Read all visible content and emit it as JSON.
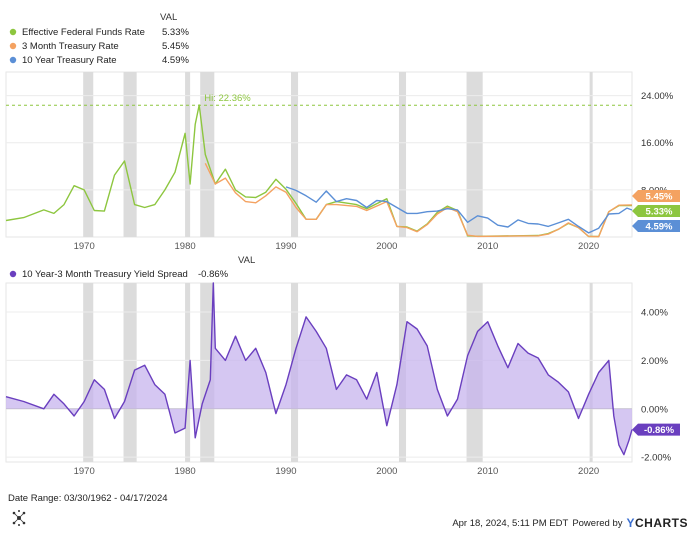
{
  "legend_top": {
    "header": "VAL",
    "items": [
      {
        "label": "Effective Federal Funds Rate",
        "value": "5.33%",
        "color": "#8dc63f"
      },
      {
        "label": "3 Month Treasury Rate",
        "value": "5.45%",
        "color": "#f4a261"
      },
      {
        "label": "10 Year Treasury Rate",
        "value": "4.59%",
        "color": "#5b8fd6"
      }
    ]
  },
  "legend_bottom": {
    "header": "VAL",
    "items": [
      {
        "label": "10 Year-3 Month Treasury Yield Spread",
        "value": "-0.86%",
        "color": "#6a3fbf"
      }
    ]
  },
  "footer": {
    "date_range": "Date Range: 03/30/1962 - 04/17/2024",
    "timestamp": "Apr 18, 2024, 5:11 PM EDT",
    "powered_by": "Powered by",
    "brand_y": "Y",
    "brand_rest": "CHARTS"
  },
  "chart_data": [
    {
      "type": "line",
      "x_ticks": [
        "1970",
        "1980",
        "1990",
        "2000",
        "2010",
        "2020"
      ],
      "y_ticks": [
        "8.00%",
        "16.00%",
        "24.00%"
      ],
      "ylim": [
        0,
        28
      ],
      "xlim": [
        1962.25,
        2024.3
      ],
      "grid": true,
      "legend_position": "top-left",
      "annotation": {
        "text": "Hi: 22.36%",
        "value": 22.36,
        "color": "#8dc63f"
      },
      "end_labels": [
        {
          "text": "5.45%",
          "color": "#f4a261"
        },
        {
          "text": "5.33%",
          "color": "#8dc63f"
        },
        {
          "text": "4.59%",
          "color": "#5b8fd6"
        }
      ],
      "recessions": [
        [
          1969.9,
          1970.9
        ],
        [
          1973.9,
          1975.2
        ],
        [
          1980.0,
          1980.5
        ],
        [
          1981.5,
          1982.9
        ],
        [
          1990.5,
          1991.2
        ],
        [
          2001.2,
          2001.9
        ],
        [
          2007.9,
          2009.5
        ],
        [
          2020.1,
          2020.4
        ]
      ],
      "series": [
        {
          "name": "Effective Federal Funds Rate",
          "color": "#8dc63f",
          "points": [
            [
              1962.25,
              2.8
            ],
            [
              1964,
              3.3
            ],
            [
              1966,
              4.6
            ],
            [
              1967,
              4.0
            ],
            [
              1968,
              5.5
            ],
            [
              1969,
              8.7
            ],
            [
              1970,
              8.0
            ],
            [
              1971,
              4.5
            ],
            [
              1972,
              4.4
            ],
            [
              1973,
              10.5
            ],
            [
              1974,
              12.9
            ],
            [
              1975,
              5.5
            ],
            [
              1976,
              5.0
            ],
            [
              1977,
              5.5
            ],
            [
              1978,
              8.0
            ],
            [
              1979,
              11.0
            ],
            [
              1980,
              17.6
            ],
            [
              1980.5,
              9.0
            ],
            [
              1981,
              19.1
            ],
            [
              1981.4,
              22.4
            ],
            [
              1982,
              14.0
            ],
            [
              1983,
              9.0
            ],
            [
              1984,
              11.5
            ],
            [
              1985,
              8.0
            ],
            [
              1986,
              6.8
            ],
            [
              1987,
              6.7
            ],
            [
              1988,
              7.6
            ],
            [
              1989,
              9.8
            ],
            [
              1990,
              8.1
            ],
            [
              1991,
              5.7
            ],
            [
              1992,
              3.0
            ],
            [
              1993,
              3.0
            ],
            [
              1994,
              5.5
            ],
            [
              1995,
              6.0
            ],
            [
              1997,
              5.5
            ],
            [
              1998,
              4.8
            ],
            [
              2000,
              6.5
            ],
            [
              2001,
              1.8
            ],
            [
              2002,
              1.7
            ],
            [
              2003,
              1.0
            ],
            [
              2004,
              2.2
            ],
            [
              2005,
              4.2
            ],
            [
              2006,
              5.25
            ],
            [
              2007,
              4.5
            ],
            [
              2008,
              0.2
            ],
            [
              2009,
              0.12
            ],
            [
              2015,
              0.25
            ],
            [
              2016,
              0.6
            ],
            [
              2017,
              1.3
            ],
            [
              2018,
              2.3
            ],
            [
              2019,
              1.6
            ],
            [
              2020,
              0.08
            ],
            [
              2021,
              0.08
            ],
            [
              2022,
              4.3
            ],
            [
              2023,
              5.33
            ],
            [
              2024.3,
              5.33
            ]
          ]
        },
        {
          "name": "3 Month Treasury Rate",
          "color": "#f4a261",
          "points": [
            [
              1982,
              12.5
            ],
            [
              1983,
              9.0
            ],
            [
              1984,
              10.0
            ],
            [
              1985,
              7.5
            ],
            [
              1986,
              6.0
            ],
            [
              1987,
              5.8
            ],
            [
              1988,
              7.0
            ],
            [
              1989,
              8.5
            ],
            [
              1990,
              7.6
            ],
            [
              1991,
              5.0
            ],
            [
              1992,
              3.0
            ],
            [
              1993,
              3.0
            ],
            [
              1994,
              5.5
            ],
            [
              1995,
              5.5
            ],
            [
              1997,
              5.2
            ],
            [
              1998,
              4.5
            ],
            [
              2000,
              6.0
            ],
            [
              2001,
              1.8
            ],
            [
              2002,
              1.6
            ],
            [
              2003,
              0.9
            ],
            [
              2004,
              2.1
            ],
            [
              2005,
              3.9
            ],
            [
              2006,
              5.0
            ],
            [
              2007,
              4.3
            ],
            [
              2008,
              0.3
            ],
            [
              2009,
              0.1
            ],
            [
              2015,
              0.2
            ],
            [
              2016,
              0.5
            ],
            [
              2017,
              1.3
            ],
            [
              2018,
              2.4
            ],
            [
              2019,
              1.6
            ],
            [
              2020,
              0.1
            ],
            [
              2021,
              0.05
            ],
            [
              2022,
              4.3
            ],
            [
              2023,
              5.4
            ],
            [
              2024.3,
              5.45
            ]
          ]
        },
        {
          "name": "10 Year Treasury Rate",
          "color": "#5b8fd6",
          "points": [
            [
              1990,
              8.5
            ],
            [
              1991,
              7.9
            ],
            [
              1992,
              7.0
            ],
            [
              1993,
              5.9
            ],
            [
              1994,
              7.8
            ],
            [
              1995,
              6.0
            ],
            [
              1996,
              6.5
            ],
            [
              1997,
              6.2
            ],
            [
              1998,
              5.0
            ],
            [
              1999,
              6.2
            ],
            [
              2000,
              6.0
            ],
            [
              2001,
              5.0
            ],
            [
              2002,
              4.0
            ],
            [
              2003,
              4.0
            ],
            [
              2004,
              4.3
            ],
            [
              2005,
              4.4
            ],
            [
              2006,
              4.8
            ],
            [
              2007,
              4.6
            ],
            [
              2008,
              2.5
            ],
            [
              2009,
              3.6
            ],
            [
              2010,
              3.2
            ],
            [
              2011,
              2.0
            ],
            [
              2012,
              1.7
            ],
            [
              2013,
              2.9
            ],
            [
              2014,
              2.3
            ],
            [
              2015,
              2.2
            ],
            [
              2016,
              1.8
            ],
            [
              2017,
              2.4
            ],
            [
              2018,
              3.0
            ],
            [
              2019,
              1.8
            ],
            [
              2020,
              0.7
            ],
            [
              2021,
              1.5
            ],
            [
              2022,
              3.9
            ],
            [
              2023,
              4.0
            ],
            [
              2023.8,
              4.9
            ],
            [
              2024.3,
              4.59
            ]
          ]
        }
      ]
    },
    {
      "type": "area",
      "x_ticks": [
        "1970",
        "1980",
        "1990",
        "2000",
        "2010",
        "2020"
      ],
      "y_ticks": [
        "-2.00%",
        "0.00%",
        "2.00%",
        "4.00%"
      ],
      "ylim": [
        -2.2,
        5.2
      ],
      "xlim": [
        1962.25,
        2024.3
      ],
      "grid": true,
      "legend_position": "top-left",
      "end_labels": [
        {
          "text": "-0.86%",
          "color": "#6a3fbf"
        }
      ],
      "recessions": [
        [
          1969.9,
          1970.9
        ],
        [
          1973.9,
          1975.2
        ],
        [
          1980.0,
          1980.5
        ],
        [
          1981.5,
          1982.9
        ],
        [
          1990.5,
          1991.2
        ],
        [
          2001.2,
          2001.9
        ],
        [
          2007.9,
          2009.5
        ],
        [
          2020.1,
          2020.4
        ]
      ],
      "series": [
        {
          "name": "10 Year-3 Month Treasury Yield Spread",
          "color": "#6a3fbf",
          "points": [
            [
              1962.25,
              0.5
            ],
            [
              1964,
              0.3
            ],
            [
              1966,
              0.0
            ],
            [
              1967,
              0.6
            ],
            [
              1968,
              0.2
            ],
            [
              1969,
              -0.3
            ],
            [
              1970,
              0.3
            ],
            [
              1971,
              1.2
            ],
            [
              1972,
              0.8
            ],
            [
              1973,
              -0.4
            ],
            [
              1974,
              0.3
            ],
            [
              1975,
              1.6
            ],
            [
              1976,
              1.8
            ],
            [
              1977,
              1.0
            ],
            [
              1978,
              0.6
            ],
            [
              1979,
              -1.0
            ],
            [
              1980,
              -0.8
            ],
            [
              1980.5,
              2.0
            ],
            [
              1981,
              -1.2
            ],
            [
              1981.7,
              0.2
            ],
            [
              1982.5,
              1.2
            ],
            [
              1982.8,
              5.2
            ],
            [
              1983,
              2.5
            ],
            [
              1984,
              2.0
            ],
            [
              1985,
              3.0
            ],
            [
              1986,
              2.0
            ],
            [
              1987,
              2.5
            ],
            [
              1988,
              1.5
            ],
            [
              1989,
              -0.2
            ],
            [
              1990,
              1.0
            ],
            [
              1991,
              2.5
            ],
            [
              1992,
              3.8
            ],
            [
              1993,
              3.2
            ],
            [
              1994,
              2.5
            ],
            [
              1995,
              0.8
            ],
            [
              1996,
              1.4
            ],
            [
              1997,
              1.2
            ],
            [
              1998,
              0.4
            ],
            [
              1999,
              1.5
            ],
            [
              2000,
              -0.7
            ],
            [
              2001,
              1.0
            ],
            [
              2002,
              3.6
            ],
            [
              2003,
              3.3
            ],
            [
              2004,
              2.6
            ],
            [
              2005,
              0.8
            ],
            [
              2006,
              -0.3
            ],
            [
              2007,
              0.4
            ],
            [
              2008,
              2.2
            ],
            [
              2009,
              3.2
            ],
            [
              2010,
              3.6
            ],
            [
              2011,
              2.6
            ],
            [
              2012,
              1.7
            ],
            [
              2013,
              2.7
            ],
            [
              2014,
              2.3
            ],
            [
              2015,
              2.1
            ],
            [
              2016,
              1.4
            ],
            [
              2017,
              1.1
            ],
            [
              2018,
              0.7
            ],
            [
              2019,
              -0.4
            ],
            [
              2020,
              0.6
            ],
            [
              2021,
              1.5
            ],
            [
              2022,
              2.0
            ],
            [
              2022.5,
              -0.3
            ],
            [
              2023,
              -1.5
            ],
            [
              2023.5,
              -1.9
            ],
            [
              2024,
              -1.3
            ],
            [
              2024.3,
              -0.86
            ]
          ]
        }
      ]
    }
  ]
}
